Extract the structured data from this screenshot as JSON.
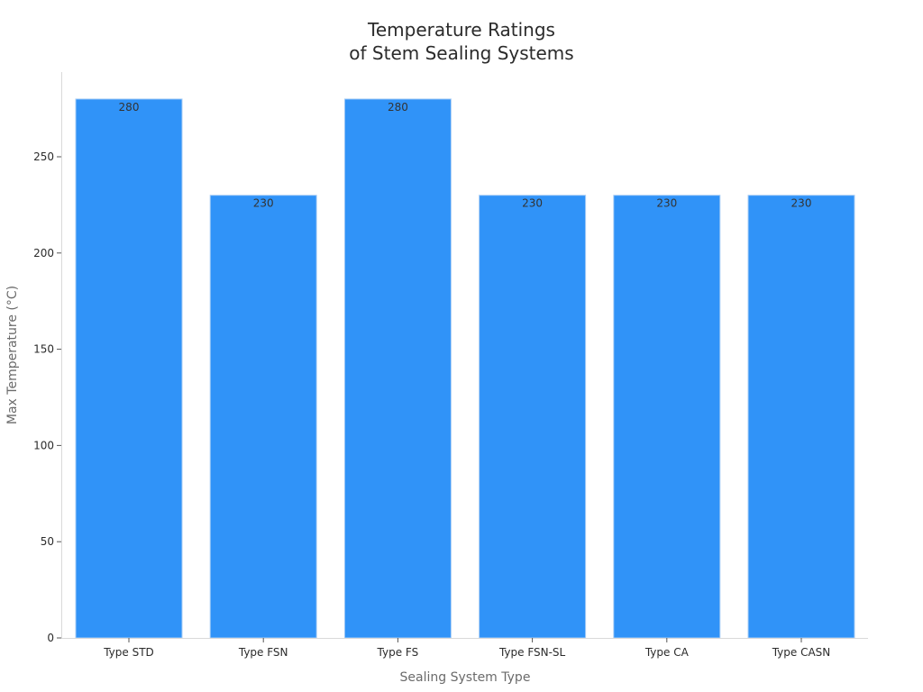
{
  "chart_data": {
    "type": "bar",
    "title_lines": [
      "Temperature Ratings",
      "of Stem Sealing Systems"
    ],
    "xlabel": "Sealing System Type",
    "ylabel": "Max Temperature (°C)",
    "categories": [
      "Type STD",
      "Type FSN",
      "Type FS",
      "Type FSN-SL",
      "Type CA",
      "Type CASN"
    ],
    "values": [
      280,
      230,
      280,
      230,
      230,
      230
    ],
    "data_labels": [
      "280",
      "230",
      "280",
      "230",
      "230",
      "230"
    ],
    "ylim": [
      0,
      294
    ],
    "yticks": [
      0,
      50,
      100,
      150,
      200,
      250
    ],
    "ytick_labels": [
      "0",
      "50",
      "100",
      "150",
      "200",
      "250"
    ],
    "grid": false,
    "bar_color": "#3093f8",
    "bar_edge_color": "#a9cdf5"
  }
}
